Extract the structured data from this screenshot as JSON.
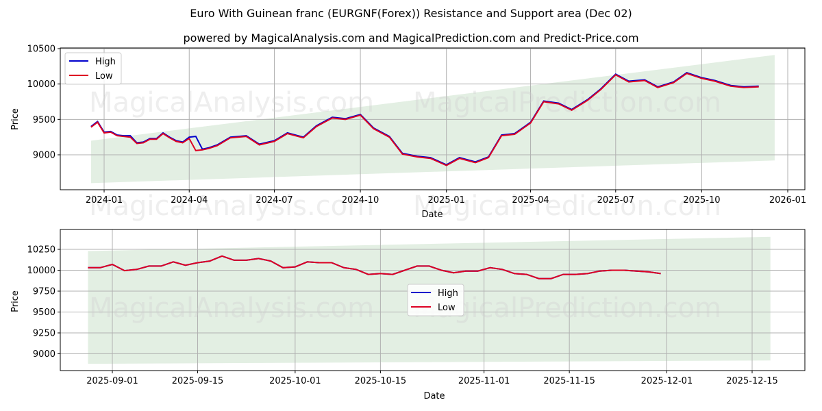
{
  "header": {
    "title": "Euro With Guinean franc (EURGNF(Forex)) Resistance and Support area (Dec 02)",
    "subtitle": "powered by MagicalAnalysis.com and MagicalPrediction.com and Predict-Price.com"
  },
  "watermarks": [
    "MagicalAnalysis.com",
    "MagicalPrediction.com"
  ],
  "colors": {
    "high": "#0000cc",
    "low": "#dd0022",
    "band": "#e3efe3",
    "grid": "#b0b0b0"
  },
  "legend": {
    "high_label": "High",
    "low_label": "Low"
  },
  "chart_data": [
    {
      "type": "line",
      "title": "Euro With Guinean franc (EURGNF(Forex)) Resistance and Support area (Dec 02)",
      "xlabel": "Date",
      "ylabel": "Price",
      "ylim": [
        8520,
        10500
      ],
      "yticks": [
        9000,
        9500,
        10000,
        10500
      ],
      "xticks": [
        "2024-01",
        "2024-04",
        "2024-07",
        "2024-10",
        "2025-01",
        "2025-04",
        "2025-07",
        "2025-10",
        "2026-01"
      ],
      "grid": true,
      "legend_position": "upper left",
      "band": {
        "label": "Resistance and Support area",
        "x_start": "2023-12-18",
        "x_end": "2025-12-18",
        "upper_start": 9200,
        "upper_end": 10410,
        "lower_start": 8600,
        "lower_end": 8920
      },
      "series": [
        {
          "name": "High",
          "x": [
            "2023-12-18",
            "2023-12-25",
            "2024-01-01",
            "2024-01-08",
            "2024-01-15",
            "2024-01-22",
            "2024-01-29",
            "2024-02-05",
            "2024-02-12",
            "2024-02-19",
            "2024-02-26",
            "2024-03-04",
            "2024-03-11",
            "2024-03-18",
            "2024-03-25",
            "2024-04-01",
            "2024-04-08",
            "2024-04-15",
            "2024-04-22",
            "2024-05-01",
            "2024-05-15",
            "2024-06-01",
            "2024-06-15",
            "2024-07-01",
            "2024-07-15",
            "2024-08-01",
            "2024-08-15",
            "2024-09-01",
            "2024-09-15",
            "2024-10-01",
            "2024-10-15",
            "2024-11-01",
            "2024-11-15",
            "2024-12-01",
            "2024-12-15",
            "2025-01-01",
            "2025-01-15",
            "2025-02-01",
            "2025-02-15",
            "2025-03-01",
            "2025-03-15",
            "2025-04-01",
            "2025-04-15",
            "2025-05-01",
            "2025-05-15",
            "2025-06-01",
            "2025-06-15",
            "2025-07-01",
            "2025-07-15",
            "2025-08-01",
            "2025-08-15",
            "2025-09-01",
            "2025-09-15",
            "2025-10-01",
            "2025-10-15",
            "2025-11-01",
            "2025-11-15",
            "2025-12-01"
          ],
          "values": [
            9400,
            9470,
            9320,
            9330,
            9280,
            9270,
            9270,
            9170,
            9180,
            9230,
            9230,
            9310,
            9250,
            9200,
            9180,
            9250,
            9260,
            9080,
            9100,
            9140,
            9250,
            9270,
            9150,
            9200,
            9310,
            9250,
            9410,
            9530,
            9510,
            9570,
            9380,
            9260,
            9020,
            8980,
            8960,
            8860,
            8960,
            8900,
            8970,
            9280,
            9300,
            9460,
            9760,
            9730,
            9640,
            9780,
            9930,
            10140,
            10040,
            10060,
            9960,
            10030,
            10160,
            10090,
            10050,
            9980,
            9960,
            9970
          ]
        },
        {
          "name": "Low",
          "x": [
            "2023-12-18",
            "2023-12-25",
            "2024-01-01",
            "2024-01-08",
            "2024-01-15",
            "2024-01-22",
            "2024-01-29",
            "2024-02-05",
            "2024-02-12",
            "2024-02-19",
            "2024-02-26",
            "2024-03-04",
            "2024-03-11",
            "2024-03-18",
            "2024-03-25",
            "2024-04-01",
            "2024-04-08",
            "2024-04-15",
            "2024-04-22",
            "2024-05-01",
            "2024-05-15",
            "2024-06-01",
            "2024-06-15",
            "2024-07-01",
            "2024-07-15",
            "2024-08-01",
            "2024-08-15",
            "2024-09-01",
            "2024-09-15",
            "2024-10-01",
            "2024-10-15",
            "2024-11-01",
            "2024-11-15",
            "2024-12-01",
            "2024-12-15",
            "2025-01-01",
            "2025-01-15",
            "2025-02-01",
            "2025-02-15",
            "2025-03-01",
            "2025-03-15",
            "2025-04-01",
            "2025-04-15",
            "2025-05-01",
            "2025-05-15",
            "2025-06-01",
            "2025-06-15",
            "2025-07-01",
            "2025-07-15",
            "2025-08-01",
            "2025-08-15",
            "2025-09-01",
            "2025-09-15",
            "2025-10-01",
            "2025-10-15",
            "2025-11-01",
            "2025-11-15",
            "2025-12-01"
          ],
          "values": [
            9390,
            9460,
            9310,
            9320,
            9270,
            9260,
            9250,
            9160,
            9170,
            9220,
            9220,
            9300,
            9240,
            9190,
            9170,
            9230,
            9060,
            9070,
            9090,
            9130,
            9240,
            9260,
            9140,
            9190,
            9300,
            9240,
            9400,
            9520,
            9500,
            9560,
            9370,
            9250,
            9010,
            8970,
            8950,
            8850,
            8950,
            8890,
            8960,
            9270,
            9290,
            9450,
            9750,
            9720,
            9630,
            9770,
            9920,
            10130,
            10030,
            10050,
            9950,
            10020,
            10150,
            10080,
            10040,
            9970,
            9950,
            9960
          ]
        }
      ]
    },
    {
      "type": "line",
      "title": "",
      "xlabel": "Date",
      "ylabel": "Price",
      "ylim": [
        8850,
        10460
      ],
      "yticks": [
        9000,
        9250,
        9500,
        9750,
        10000,
        10250
      ],
      "xticks": [
        "2025-09-01",
        "2025-09-15",
        "2025-10-01",
        "2025-10-15",
        "2025-11-01",
        "2025-11-15",
        "2025-12-01",
        "2025-12-15"
      ],
      "grid": true,
      "legend_position": "center",
      "band": {
        "label": "Resistance and Support area",
        "x_start": "2025-08-28",
        "x_end": "2025-12-18",
        "upper_start": 10230,
        "upper_end": 10400,
        "lower_start": 8880,
        "lower_end": 8920
      },
      "series": [
        {
          "name": "High",
          "x": [
            "2025-08-28",
            "2025-08-30",
            "2025-09-01",
            "2025-09-03",
            "2025-09-05",
            "2025-09-07",
            "2025-09-09",
            "2025-09-11",
            "2025-09-13",
            "2025-09-15",
            "2025-09-17",
            "2025-09-19",
            "2025-09-21",
            "2025-09-23",
            "2025-09-25",
            "2025-09-27",
            "2025-09-29",
            "2025-10-01",
            "2025-10-03",
            "2025-10-05",
            "2025-10-07",
            "2025-10-09",
            "2025-10-11",
            "2025-10-13",
            "2025-10-15",
            "2025-10-17",
            "2025-10-19",
            "2025-10-21",
            "2025-10-23",
            "2025-10-25",
            "2025-10-27",
            "2025-10-29",
            "2025-10-31",
            "2025-11-02",
            "2025-11-04",
            "2025-11-06",
            "2025-11-08",
            "2025-11-10",
            "2025-11-12",
            "2025-11-14",
            "2025-11-16",
            "2025-11-18",
            "2025-11-20",
            "2025-11-22",
            "2025-11-24",
            "2025-11-26",
            "2025-11-28",
            "2025-11-30"
          ],
          "values": [
            10030,
            10030,
            10070,
            9995,
            10010,
            10050,
            10050,
            10100,
            10060,
            10090,
            10110,
            10170,
            10120,
            10120,
            10140,
            10110,
            10030,
            10040,
            10100,
            10090,
            10090,
            10030,
            10010,
            9950,
            9960,
            9950,
            10000,
            10050,
            10050,
            10000,
            9970,
            9990,
            9990,
            10030,
            10010,
            9960,
            9950,
            9900,
            9900,
            9950,
            9950,
            9960,
            9990,
            10000,
            10000,
            9990,
            9980,
            9960
          ]
        },
        {
          "name": "Low",
          "x": [
            "2025-08-28",
            "2025-08-30",
            "2025-09-01",
            "2025-09-03",
            "2025-09-05",
            "2025-09-07",
            "2025-09-09",
            "2025-09-11",
            "2025-09-13",
            "2025-09-15",
            "2025-09-17",
            "2025-09-19",
            "2025-09-21",
            "2025-09-23",
            "2025-09-25",
            "2025-09-27",
            "2025-09-29",
            "2025-10-01",
            "2025-10-03",
            "2025-10-05",
            "2025-10-07",
            "2025-10-09",
            "2025-10-11",
            "2025-10-13",
            "2025-10-15",
            "2025-10-17",
            "2025-10-19",
            "2025-10-21",
            "2025-10-23",
            "2025-10-25",
            "2025-10-27",
            "2025-10-29",
            "2025-10-31",
            "2025-11-02",
            "2025-11-04",
            "2025-11-06",
            "2025-11-08",
            "2025-11-10",
            "2025-11-12",
            "2025-11-14",
            "2025-11-16",
            "2025-11-18",
            "2025-11-20",
            "2025-11-22",
            "2025-11-24",
            "2025-11-26",
            "2025-11-28",
            "2025-11-30"
          ],
          "values": [
            10030,
            10030,
            10070,
            9995,
            10010,
            10050,
            10050,
            10100,
            10060,
            10090,
            10110,
            10170,
            10120,
            10120,
            10140,
            10110,
            10030,
            10040,
            10100,
            10090,
            10090,
            10030,
            10010,
            9950,
            9960,
            9950,
            10000,
            10050,
            10050,
            10000,
            9970,
            9990,
            9990,
            10030,
            10010,
            9960,
            9950,
            9900,
            9900,
            9950,
            9950,
            9960,
            9990,
            10000,
            10000,
            9990,
            9980,
            9960
          ]
        }
      ]
    }
  ]
}
